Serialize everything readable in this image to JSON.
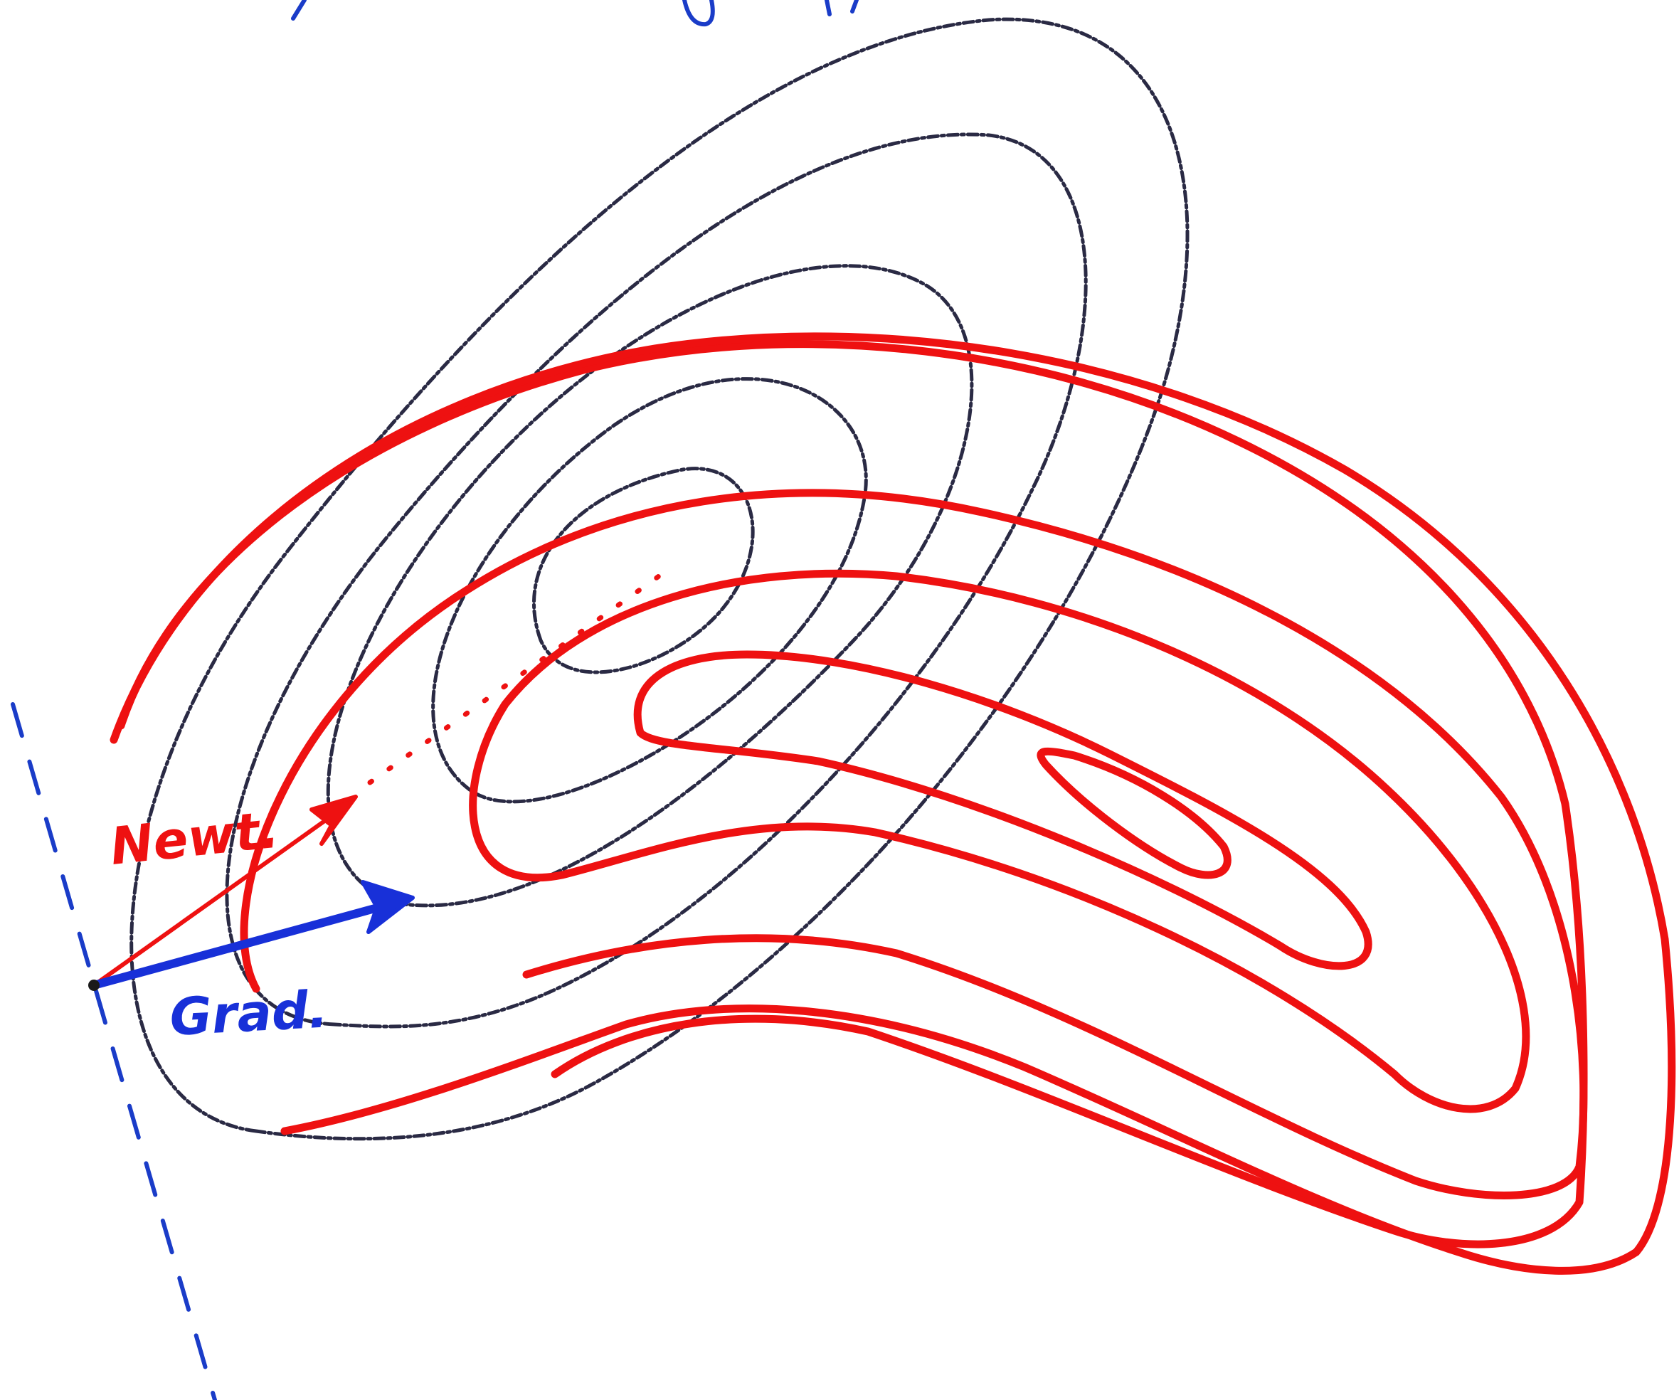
{
  "labels": {
    "newton": "Newt.",
    "gradient": "Grad."
  },
  "colors": {
    "newton": "#ee1111",
    "gradient": "#1830d8",
    "quadratic_contours": "#2a2a44",
    "true_contours": "#ee1111",
    "tangent_line": "#1a3cc8",
    "background": "#ffffff"
  }
}
